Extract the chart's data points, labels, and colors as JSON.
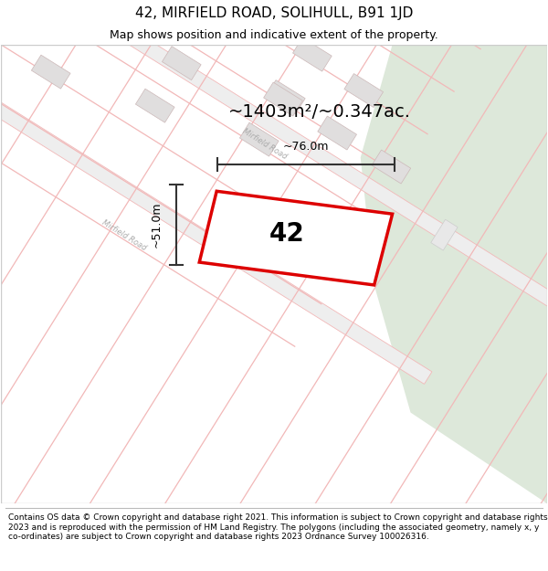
{
  "title": "42, MIRFIELD ROAD, SOLIHULL, B91 1JD",
  "subtitle": "Map shows position and indicative extent of the property.",
  "footer": "Contains OS data © Crown copyright and database right 2021. This information is subject to Crown copyright and database rights 2023 and is reproduced with the permission of HM Land Registry. The polygons (including the associated geometry, namely x, y co-ordinates) are subject to Crown copyright and database rights 2023 Ordnance Survey 100026316.",
  "area_text": "~1403m²/~0.347ac.",
  "dim_width": "~76.0m",
  "dim_height": "~51.0m",
  "label_42": "42",
  "bg_map_color": "#f5f5f5",
  "bg_green_color": "#dde8da",
  "street_color": "#f2b8b8",
  "building_fill": "#e0dede",
  "building_edge": "#ccb8b8",
  "highlight_color": "#dd0000",
  "dim_line_color": "#333333",
  "road_label_color": "#aaaaaa",
  "title_fontsize": 11,
  "subtitle_fontsize": 9,
  "footer_fontsize": 6.5
}
